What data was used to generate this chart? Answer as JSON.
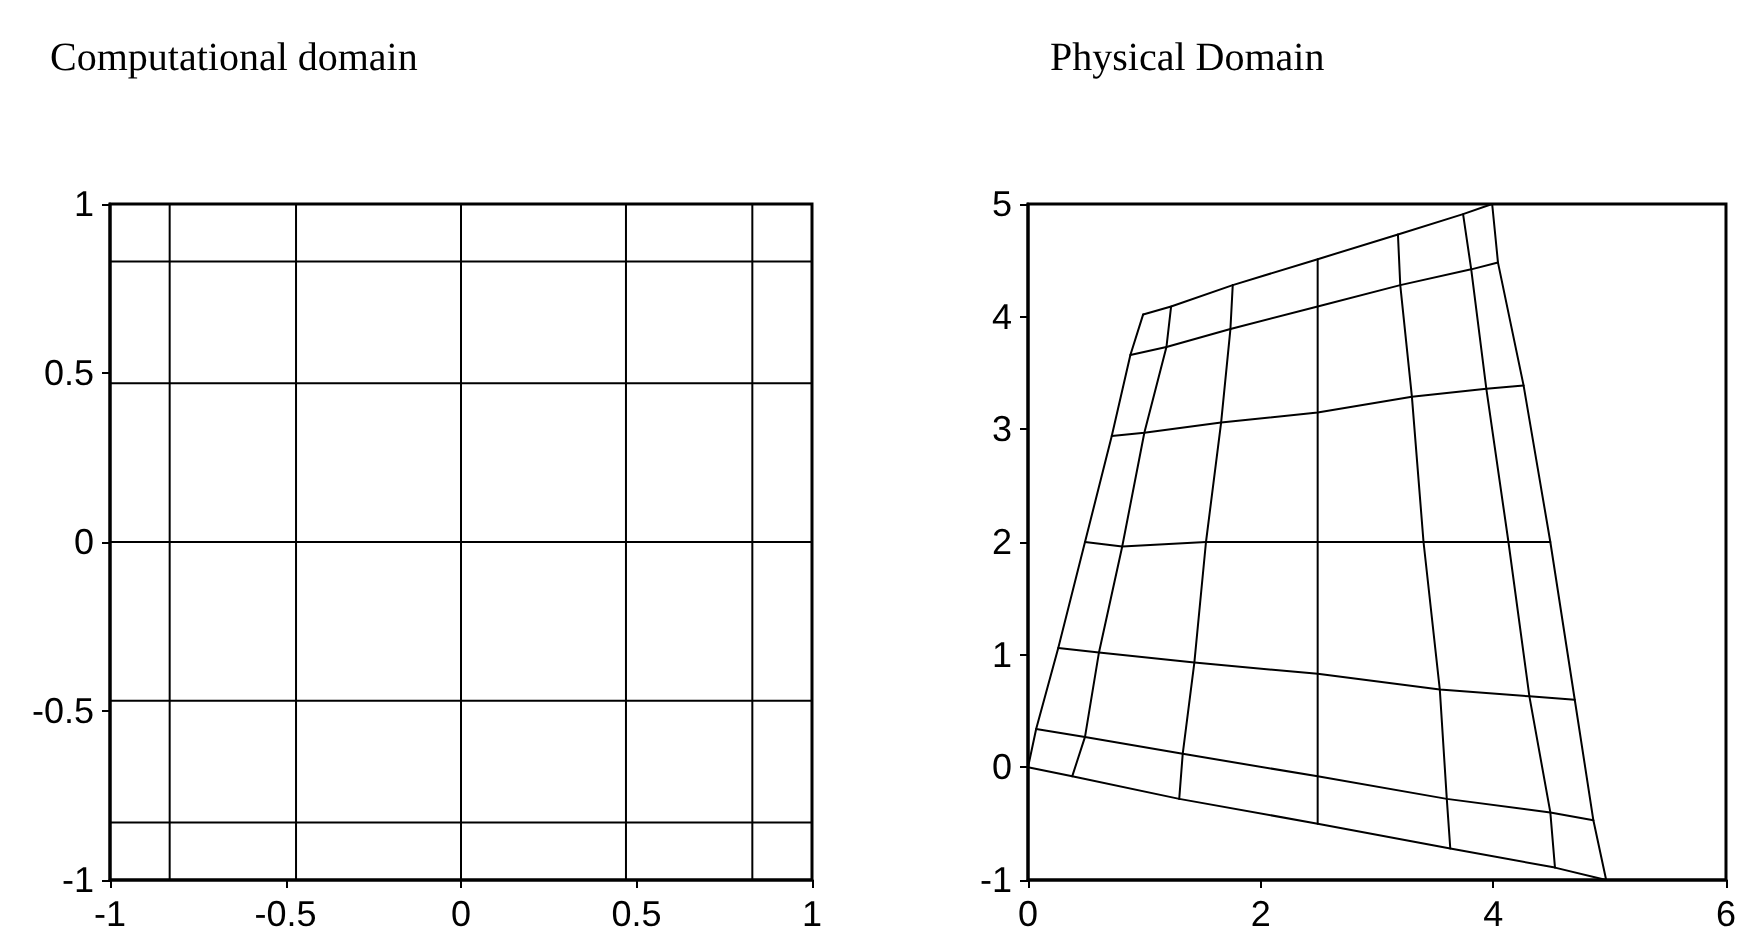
{
  "chart_data": [
    {
      "type": "line",
      "title": "Computational domain",
      "xlim": [
        -1,
        1
      ],
      "ylim": [
        -1,
        1
      ],
      "xticks": [
        -1,
        -0.5,
        0,
        0.5,
        1
      ],
      "yticks": [
        -1,
        -0.5,
        0,
        0.5,
        1
      ],
      "grid": false,
      "marker": "none",
      "line_style": "solid",
      "series": [
        {
          "color": "#000000",
          "x": [
            -1,
            1
          ],
          "values": [
            -0.83,
            -0.83
          ]
        },
        {
          "color": "#000000",
          "x": [
            -1,
            1
          ],
          "values": [
            -0.47,
            -0.47
          ]
        },
        {
          "color": "#000000",
          "x": [
            -1,
            1
          ],
          "values": [
            0,
            0
          ]
        },
        {
          "color": "#000000",
          "x": [
            -1,
            1
          ],
          "values": [
            0.47,
            0.47
          ]
        },
        {
          "color": "#000000",
          "x": [
            -1,
            1
          ],
          "values": [
            0.83,
            0.83
          ]
        },
        {
          "color": "#000000",
          "x": [
            -0.83,
            -0.83
          ],
          "values": [
            -1,
            1
          ]
        },
        {
          "color": "#000000",
          "x": [
            -0.47,
            -0.47
          ],
          "values": [
            -1,
            1
          ]
        },
        {
          "color": "#000000",
          "x": [
            0,
            0
          ],
          "values": [
            -1,
            1
          ]
        },
        {
          "color": "#000000",
          "x": [
            0.47,
            0.47
          ],
          "values": [
            -1,
            1
          ]
        },
        {
          "color": "#000000",
          "x": [
            0.83,
            0.83
          ],
          "values": [
            -1,
            1
          ]
        }
      ]
    },
    {
      "type": "line",
      "title": "Physical Domain",
      "xlim": [
        0,
        6
      ],
      "ylim": [
        -1,
        5
      ],
      "xticks": [
        0,
        2,
        4,
        6
      ],
      "yticks": [
        -1,
        0,
        1,
        2,
        3,
        4,
        5
      ],
      "grid": false,
      "marker": "none",
      "line_style": "solid",
      "series": [
        {
          "color": "#000000",
          "x": [
            0,
            0.38,
            1.3,
            2.49,
            3.63,
            4.53,
            4.97
          ],
          "values": [
            0,
            -0.08,
            -0.28,
            -0.5,
            -0.72,
            -0.89,
            -1
          ]
        },
        {
          "color": "#000000",
          "x": [
            0.07,
            0.49,
            1.33,
            2.49,
            3.6,
            4.49,
            4.86
          ],
          "values": [
            0.34,
            0.27,
            0.12,
            -0.08,
            -0.28,
            -0.4,
            -0.47
          ]
        },
        {
          "color": "#000000",
          "x": [
            0.26,
            0.61,
            1.43,
            2.49,
            3.54,
            4.31,
            4.7
          ],
          "values": [
            1.06,
            1.02,
            0.93,
            0.83,
            0.69,
            0.63,
            0.6
          ]
        },
        {
          "color": "#000000",
          "x": [
            0.49,
            0.81,
            1.53,
            2.49,
            3.4,
            4.13,
            4.49
          ],
          "values": [
            2,
            1.96,
            2,
            2,
            2,
            2,
            2
          ]
        },
        {
          "color": "#000000",
          "x": [
            0.72,
            1,
            1.66,
            2.49,
            3.3,
            3.94,
            4.26
          ],
          "values": [
            2.94,
            2.97,
            3.06,
            3.15,
            3.29,
            3.36,
            3.39
          ]
        },
        {
          "color": "#000000",
          "x": [
            0.88,
            1.19,
            1.74,
            2.49,
            3.2,
            3.81,
            4.04
          ],
          "values": [
            3.66,
            3.73,
            3.89,
            4.09,
            4.28,
            4.42,
            4.48
          ]
        },
        {
          "color": "#000000",
          "x": [
            0.99,
            1.23,
            1.76,
            2.49,
            3.18,
            3.74,
            3.99
          ],
          "values": [
            4.02,
            4.09,
            4.28,
            4.51,
            4.73,
            4.91,
            5
          ]
        },
        {
          "color": "#000000",
          "x": [
            0,
            0.07,
            0.26,
            0.49,
            0.72,
            0.88,
            0.99
          ],
          "values": [
            0,
            0.34,
            1.06,
            2,
            2.94,
            3.66,
            4.02
          ]
        },
        {
          "color": "#000000",
          "x": [
            0.38,
            0.49,
            0.61,
            0.81,
            1,
            1.19,
            1.23
          ],
          "values": [
            -0.08,
            0.27,
            1.02,
            1.96,
            2.97,
            3.73,
            4.09
          ]
        },
        {
          "color": "#000000",
          "x": [
            1.3,
            1.33,
            1.43,
            1.53,
            1.66,
            1.74,
            1.76
          ],
          "values": [
            -0.28,
            0.12,
            0.93,
            2,
            3.06,
            3.89,
            4.28
          ]
        },
        {
          "color": "#000000",
          "x": [
            2.49,
            2.49,
            2.49,
            2.49,
            2.49,
            2.49,
            2.49
          ],
          "values": [
            -0.5,
            -0.08,
            0.83,
            2,
            3.15,
            4.09,
            4.51
          ]
        },
        {
          "color": "#000000",
          "x": [
            3.63,
            3.6,
            3.54,
            3.4,
            3.3,
            3.2,
            3.18
          ],
          "values": [
            -0.72,
            -0.28,
            0.69,
            2,
            3.29,
            4.28,
            4.73
          ]
        },
        {
          "color": "#000000",
          "x": [
            4.53,
            4.49,
            4.31,
            4.13,
            3.94,
            3.81,
            3.74
          ],
          "values": [
            -0.89,
            -0.4,
            0.63,
            2,
            3.36,
            4.42,
            4.91
          ]
        },
        {
          "color": "#000000",
          "x": [
            4.97,
            4.86,
            4.7,
            4.49,
            4.26,
            4.04,
            3.99
          ],
          "values": [
            -1,
            -0.47,
            0.6,
            2,
            3.39,
            4.48,
            5
          ]
        }
      ]
    }
  ]
}
